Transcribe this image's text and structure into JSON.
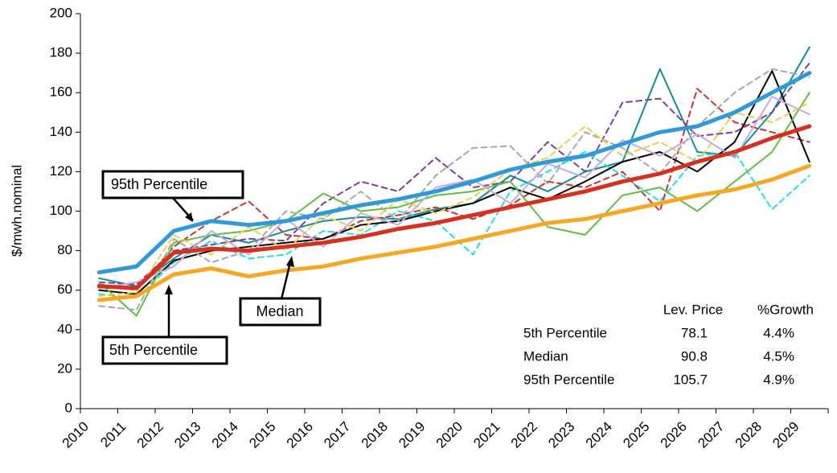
{
  "chart_data": {
    "type": "line",
    "y_label": "$/mwh.nominal",
    "categories": [
      "2010",
      "2011",
      "2012",
      "2013",
      "2014",
      "2015",
      "2016",
      "2017",
      "2018",
      "2019",
      "2020",
      "2021",
      "2022",
      "2023",
      "2024",
      "2025",
      "2026",
      "2027",
      "2028",
      "2029"
    ],
    "ylim": [
      0,
      200
    ],
    "yticks": [
      0,
      20,
      40,
      60,
      80,
      100,
      120,
      140,
      160,
      180,
      200
    ],
    "scenarios": [
      {
        "color": "#0f8f8f",
        "dashed": false,
        "values": [
          66,
          62,
          76,
          88,
          84,
          90,
          95,
          97,
          96,
          101,
          104,
          118,
          110,
          120,
          125,
          172,
          130,
          128,
          150,
          183
        ]
      },
      {
        "color": "#7b3fa0",
        "dashed": true,
        "values": [
          64,
          63,
          80,
          83,
          86,
          85,
          104,
          115,
          110,
          127,
          112,
          115,
          135,
          120,
          155,
          157,
          138,
          140,
          150,
          175
        ]
      },
      {
        "color": "#1fe0e8",
        "dashed": true,
        "values": [
          58,
          56,
          74,
          85,
          76,
          78,
          90,
          88,
          100,
          95,
          78,
          110,
          120,
          130,
          118,
          105,
          128,
          130,
          101,
          118
        ]
      },
      {
        "color": "#d0312d",
        "dashed": true,
        "values": [
          63,
          60,
          82,
          95,
          105,
          88,
          86,
          95,
          98,
          102,
          96,
          103,
          115,
          112,
          120,
          100,
          162,
          145,
          140,
          135
        ]
      },
      {
        "color": "#000000",
        "dashed": false,
        "values": [
          60,
          58,
          75,
          80,
          82,
          84,
          86,
          93,
          95,
          100,
          104,
          112,
          106,
          115,
          125,
          130,
          120,
          135,
          171,
          125
        ]
      },
      {
        "color": "#5fbf3f",
        "dashed": false,
        "values": [
          64,
          47,
          84,
          88,
          90,
          95,
          109,
          100,
          102,
          108,
          110,
          115,
          92,
          88,
          108,
          112,
          100,
          115,
          130,
          160
        ]
      },
      {
        "color": "#a8a8a8",
        "dashed": true,
        "values": [
          52,
          50,
          86,
          74,
          80,
          100,
          96,
          110,
          95,
          118,
          132,
          133,
          114,
          140,
          132,
          119,
          143,
          160,
          172,
          168
        ]
      },
      {
        "color": "#e7d24a",
        "dashed": true,
        "values": [
          57,
          59,
          88,
          78,
          92,
          80,
          98,
          90,
          106,
          99,
          107,
          121,
          127,
          143,
          128,
          135,
          125,
          150,
          145,
          155
        ]
      },
      {
        "color": "#c9a9e0",
        "dashed": false,
        "values": [
          61,
          64,
          72,
          90,
          78,
          96,
          82,
          99,
          93,
          112,
          116,
          104,
          124,
          117,
          136,
          128,
          139,
          127,
          158,
          149
        ]
      }
    ],
    "series": [
      {
        "name": "5th Percentile",
        "color": "#f7a823",
        "values": [
          55,
          57,
          68,
          71,
          67,
          70,
          72,
          76,
          79,
          82,
          86,
          90,
          94,
          96,
          100,
          104,
          108,
          111,
          116,
          123
        ]
      },
      {
        "name": "Median",
        "color": "#d7301f",
        "values": [
          62,
          61,
          79,
          81,
          80,
          82,
          84,
          87,
          91,
          94,
          98,
          102,
          106,
          110,
          115,
          119,
          125,
          130,
          137,
          143
        ]
      },
      {
        "name": "95th Percentile",
        "color": "#2e9ad6",
        "values": [
          69,
          72,
          90,
          95,
          93,
          95,
          99,
          103,
          106,
          110,
          115,
          121,
          125,
          128,
          134,
          140,
          143,
          150,
          160,
          170
        ]
      }
    ],
    "callouts": [
      "95th Percentile",
      "Median",
      "5th Percentile"
    ],
    "stats_table": {
      "columns": [
        "Lev. Price",
        "%Growth"
      ],
      "rows": [
        [
          "5th Percentile",
          "78.1",
          "4.4%"
        ],
        [
          "Median",
          "90.8",
          "4.5%"
        ],
        [
          "95th Percentile",
          "105.7",
          "4.9%"
        ]
      ]
    }
  }
}
